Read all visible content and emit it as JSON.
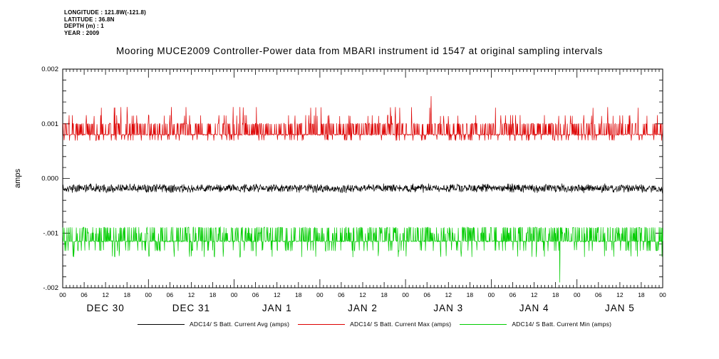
{
  "header": {
    "longitude": "LONGITUDE : 121.8W(-121.8)",
    "latitude": "LATITUDE : 36.8N",
    "depth": "DEPTH (m) : 1",
    "year": "YEAR : 2009"
  },
  "title": "Mooring MUCE2009 Controller-Power data from MBARI instrument id 1547 at original sampling intervals",
  "chart_data": {
    "type": "line",
    "title": "Mooring MUCE2009 Controller-Power data from MBARI instrument id 1547 at original sampling intervals",
    "xlabel": "",
    "ylabel": "amps",
    "ylim": [
      -0.002,
      0.002
    ],
    "ytick_values": [
      0.002,
      0.001,
      0,
      -0.001,
      -0.002
    ],
    "ytick_labels": [
      "0.002",
      "0.001",
      "0.000",
      "-.001",
      "-.002"
    ],
    "x_hours_total": 168,
    "hour_tick_interval": 6,
    "hour_tick_labels": [
      "00",
      "06",
      "12",
      "18"
    ],
    "day_labels": [
      "DEC 30",
      "DEC 31",
      "JAN 1",
      "JAN 2",
      "JAN 3",
      "JAN 4",
      "JAN 5"
    ],
    "grid": false,
    "legend_position": "bottom",
    "samples": 1680,
    "seed": 2009,
    "series": [
      {
        "id": "avg",
        "name": "ADC14/ S Batt. Current Avg (amps)",
        "color": "#000000",
        "baseline": -0.00018,
        "noise": 0.00012,
        "levels": null
      },
      {
        "id": "max",
        "name": "ADC14/ S Batt. Current Max (amps)",
        "color": "#dd0000",
        "baseline": 0.0008,
        "levels": [
          {
            "value": 0.001,
            "prob": 0.26
          },
          {
            "value": 0.00115,
            "prob": 0.05
          },
          {
            "value": 0.0013,
            "prob": 0.01
          },
          {
            "value": 0.0015,
            "prob": 0.0012
          },
          {
            "value": 0.0007,
            "prob": 0.07
          }
        ]
      },
      {
        "id": "min",
        "name": "ADC14/ S Batt. Current Min (amps)",
        "color": "#00cc00",
        "baseline": -0.00115,
        "levels": [
          {
            "value": -0.0009,
            "prob": 0.22
          },
          {
            "value": -0.001,
            "prob": 0.08
          },
          {
            "value": -0.00132,
            "prob": 0.09
          },
          {
            "value": -0.00143,
            "prob": 0.025
          },
          {
            "value": -0.0019,
            "prob": 0.0012
          }
        ]
      }
    ]
  }
}
